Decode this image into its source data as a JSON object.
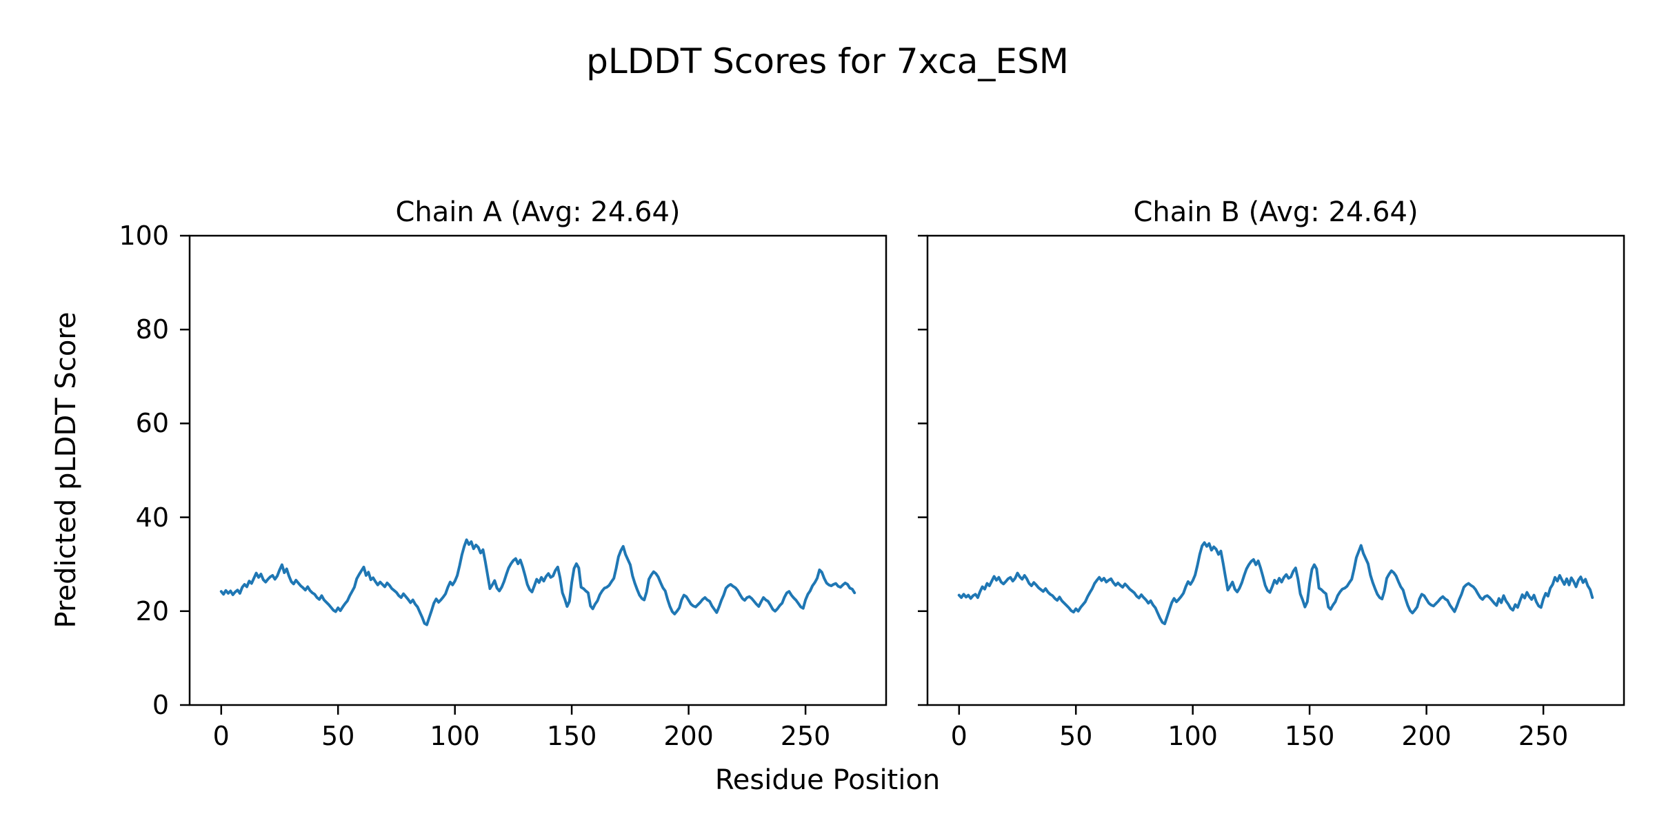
{
  "figure": {
    "title": "pLDDT Scores for 7xca_ESM",
    "xlabel": "Residue Position",
    "ylabel": "Predicted pLDDT Score",
    "background_color": "#ffffff",
    "line_color": "#1f77b4",
    "axis_color": "#000000"
  },
  "chart_data": [
    {
      "type": "line",
      "title": "Chain A (Avg: 24.64)",
      "chain": "A",
      "average_plddt": 24.64,
      "xlabel": "Residue Position",
      "ylabel": "Predicted pLDDT Score",
      "xlim": [
        -13.5,
        284.5
      ],
      "ylim": [
        0,
        100
      ],
      "xticks": [
        0,
        50,
        100,
        150,
        200,
        250
      ],
      "yticks": [
        0,
        20,
        40,
        60,
        80,
        100
      ],
      "grid": false,
      "legend_position": "none",
      "x_start": 0,
      "x_step": 1,
      "values": [
        24.2,
        23.6,
        24.4,
        23.8,
        24.3,
        23.5,
        24.1,
        24.5,
        23.8,
        25.1,
        25.7,
        25.2,
        26.4,
        25.9,
        27.0,
        28.1,
        27.2,
        27.9,
        26.7,
        26.2,
        26.8,
        27.3,
        27.6,
        26.8,
        27.5,
        28.8,
        29.9,
        28.2,
        29.0,
        27.5,
        26.3,
        25.8,
        26.6,
        26.0,
        25.4,
        25.0,
        24.5,
        25.2,
        24.4,
        23.9,
        23.6,
        22.9,
        22.5,
        23.3,
        22.4,
        21.9,
        21.4,
        20.8,
        20.2,
        19.9,
        20.7,
        20.1,
        20.9,
        21.6,
        22.2,
        23.3,
        24.2,
        25.1,
        26.9,
        27.8,
        28.6,
        29.4,
        27.6,
        28.3,
        26.7,
        27.1,
        26.3,
        25.6,
        26.2,
        25.7,
        25.2,
        26.0,
        25.5,
        24.8,
        24.4,
        24.0,
        23.3,
        22.9,
        23.7,
        23.1,
        22.5,
        21.8,
        22.4,
        21.5,
        20.9,
        19.8,
        18.7,
        17.4,
        17.1,
        18.6,
        20.1,
        21.7,
        22.6,
        21.9,
        22.4,
        23.0,
        23.7,
        25.1,
        26.2,
        25.6,
        26.4,
        27.6,
        29.7,
        32.0,
        33.8,
        35.2,
        34.2,
        34.8,
        33.3,
        34.1,
        33.6,
        32.4,
        33.1,
        30.6,
        27.7,
        24.8,
        25.6,
        26.5,
        24.9,
        24.3,
        25.1,
        26.3,
        27.8,
        29.2,
        30.1,
        30.8,
        31.2,
        30.1,
        30.9,
        29.4,
        27.6,
        25.7,
        24.6,
        24.1,
        25.4,
        26.8,
        26.1,
        27.2,
        26.4,
        27.4,
        28.0,
        27.2,
        27.5,
        28.7,
        29.4,
        27.1,
        23.9,
        22.6,
        21.0,
        22.1,
        26.1,
        29.1,
        30.1,
        29.2,
        25.1,
        24.8,
        24.3,
        23.9,
        21.1,
        20.5,
        21.5,
        22.2,
        23.5,
        24.3,
        24.9,
        25.1,
        25.5,
        26.3,
        27.0,
        29.1,
        31.6,
        32.9,
        33.8,
        32.1,
        31.0,
        29.9,
        27.5,
        25.9,
        24.6,
        23.4,
        22.7,
        22.4,
        24.1,
        26.8,
        27.7,
        28.4,
        28.0,
        27.3,
        26.1,
        25.0,
        24.3,
        22.5,
        21.0,
        19.9,
        19.4,
        20.0,
        20.7,
        22.4,
        23.4,
        23.1,
        22.3,
        21.5,
        21.1,
        20.9,
        21.4,
        21.9,
        22.5,
        22.9,
        22.4,
        22.1,
        21.1,
        20.4,
        19.7,
        20.9,
        22.3,
        23.4,
        24.9,
        25.4,
        25.7,
        25.3,
        25.0,
        24.4,
        23.5,
        22.7,
        22.3,
        22.9,
        23.1,
        22.7,
        22.1,
        21.5,
        21.0,
        22.0,
        22.9,
        22.4,
        22.1,
        21.3,
        20.4,
        20.0,
        20.5,
        21.2,
        21.7,
        23.0,
        23.9,
        24.2,
        23.4,
        22.8,
        22.3,
        21.6,
        20.9,
        20.6,
        22.4,
        23.6,
        24.3,
        25.4,
        26.1,
        27.0,
        28.8,
        28.3,
        27.0,
        26.0,
        25.6,
        25.4,
        25.7,
        25.9,
        25.3,
        25.1,
        25.6,
        26.0,
        25.7,
        24.9,
        24.7,
        23.9
      ]
    },
    {
      "type": "line",
      "title": "Chain B (Avg: 24.64)",
      "chain": "B",
      "average_plddt": 24.64,
      "xlabel": "Residue Position",
      "ylabel": "Predicted pLDDT Score",
      "xlim": [
        -13.5,
        284.5
      ],
      "ylim": [
        0,
        100
      ],
      "xticks": [
        0,
        50,
        100,
        150,
        200,
        250
      ],
      "yticks": [
        0,
        20,
        40,
        60,
        80,
        100
      ],
      "grid": false,
      "legend_position": "none",
      "x_start": 0,
      "x_step": 1,
      "values": [
        23.4,
        22.9,
        23.6,
        23.0,
        23.4,
        22.7,
        23.3,
        23.6,
        22.9,
        24.2,
        25.2,
        24.7,
        25.9,
        25.4,
        26.4,
        27.4,
        26.6,
        27.2,
        26.2,
        25.8,
        26.3,
        26.9,
        27.2,
        26.4,
        27.0,
        28.1,
        27.3,
        26.8,
        27.6,
        26.9,
        25.9,
        25.4,
        26.1,
        25.6,
        25.0,
        24.6,
        24.2,
        24.8,
        24.1,
        23.6,
        23.3,
        22.7,
        22.3,
        23.0,
        22.2,
        21.7,
        21.2,
        20.7,
        20.1,
        19.8,
        20.5,
        20.0,
        20.8,
        21.4,
        22.0,
        23.1,
        24.0,
        24.8,
        25.9,
        26.6,
        27.2,
        26.5,
        27.0,
        26.2,
        26.6,
        26.9,
        26.1,
        25.5,
        26.0,
        25.5,
        25.1,
        25.8,
        25.3,
        24.7,
        24.3,
        23.9,
        23.2,
        22.8,
        23.5,
        22.9,
        22.4,
        21.7,
        22.2,
        21.3,
        20.7,
        19.6,
        18.5,
        17.6,
        17.3,
        18.8,
        20.3,
        21.8,
        22.7,
        22.0,
        22.5,
        23.1,
        23.8,
        25.2,
        26.3,
        25.7,
        26.5,
        27.7,
        29.8,
        32.1,
        33.9,
        34.6,
        33.8,
        34.4,
        33.0,
        33.7,
        33.2,
        32.1,
        32.8,
        30.2,
        27.3,
        24.5,
        25.3,
        26.2,
        24.7,
        24.1,
        24.9,
        26.1,
        27.6,
        29.0,
        29.9,
        30.6,
        31.0,
        29.9,
        30.7,
        29.2,
        27.4,
        25.5,
        24.4,
        24.0,
        25.2,
        26.6,
        25.9,
        27.0,
        26.2,
        27.2,
        27.8,
        27.0,
        27.3,
        28.5,
        29.2,
        26.9,
        23.7,
        22.4,
        20.9,
        22.0,
        25.9,
        28.9,
        29.9,
        29.0,
        24.9,
        24.6,
        24.1,
        23.7,
        20.9,
        20.4,
        21.3,
        22.0,
        23.3,
        24.1,
        24.7,
        24.9,
        25.3,
        26.1,
        26.8,
        28.9,
        31.4,
        32.7,
        34.0,
        32.3,
        31.2,
        30.1,
        27.7,
        26.1,
        24.8,
        23.6,
        22.9,
        22.6,
        24.3,
        27.0,
        27.9,
        28.6,
        28.2,
        27.5,
        26.3,
        25.2,
        24.5,
        22.7,
        21.2,
        20.1,
        19.6,
        20.2,
        20.9,
        22.6,
        23.6,
        23.3,
        22.5,
        21.7,
        21.3,
        21.1,
        21.6,
        22.1,
        22.7,
        23.1,
        22.6,
        22.3,
        21.3,
        20.6,
        19.9,
        21.1,
        22.5,
        23.6,
        25.1,
        25.6,
        25.9,
        25.5,
        25.2,
        24.6,
        23.7,
        22.9,
        22.5,
        23.1,
        23.3,
        22.9,
        22.3,
        21.7,
        21.2,
        22.7,
        21.8,
        23.3,
        22.2,
        21.5,
        20.6,
        20.2,
        21.4,
        20.8,
        22.2,
        23.5,
        22.8,
        24.0,
        23.1,
        22.5,
        23.4,
        22.0,
        21.1,
        20.8,
        22.6,
        23.8,
        23.2,
        24.9,
        25.7,
        27.2,
        26.4,
        27.6,
        26.6,
        25.7,
        26.9,
        25.6,
        27.1,
        26.3,
        25.2,
        26.6,
        27.3,
        26.1,
        26.8,
        25.4,
        24.6,
        22.9
      ]
    }
  ]
}
